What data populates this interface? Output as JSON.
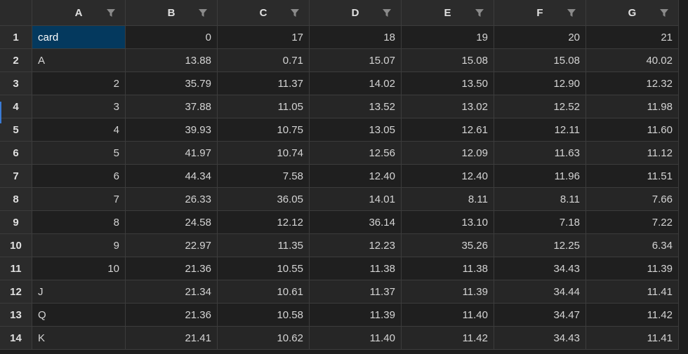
{
  "columns": [
    "A",
    "B",
    "C",
    "D",
    "E",
    "F",
    "G"
  ],
  "filter_icon": "filter-funnel-icon",
  "selected_cell": "A1",
  "colors": {
    "background": "#1e1e1e",
    "header": "#2b2b2b",
    "gridline": "#3c3c3c",
    "selection": "#04395e",
    "row_marker": "#3a7bd5"
  },
  "rows": [
    {
      "n": "1",
      "cells": [
        "card",
        "0",
        "17",
        "18",
        "19",
        "20",
        "21"
      ]
    },
    {
      "n": "2",
      "cells": [
        "A",
        "13.88",
        "0.71",
        "15.07",
        "15.08",
        "15.08",
        "40.02"
      ]
    },
    {
      "n": "3",
      "cells": [
        "2",
        "35.79",
        "11.37",
        "14.02",
        "13.50",
        "12.90",
        "12.32"
      ]
    },
    {
      "n": "4",
      "cells": [
        "3",
        "37.88",
        "11.05",
        "13.52",
        "13.02",
        "12.52",
        "11.98"
      ]
    },
    {
      "n": "5",
      "cells": [
        "4",
        "39.93",
        "10.75",
        "13.05",
        "12.61",
        "12.11",
        "11.60"
      ]
    },
    {
      "n": "6",
      "cells": [
        "5",
        "41.97",
        "10.74",
        "12.56",
        "12.09",
        "11.63",
        "11.12"
      ]
    },
    {
      "n": "7",
      "cells": [
        "6",
        "44.34",
        "7.58",
        "12.40",
        "12.40",
        "11.96",
        "11.51"
      ]
    },
    {
      "n": "8",
      "cells": [
        "7",
        "26.33",
        "36.05",
        "14.01",
        "8.11",
        "8.11",
        "7.66"
      ]
    },
    {
      "n": "9",
      "cells": [
        "8",
        "24.58",
        "12.12",
        "36.14",
        "13.10",
        "7.18",
        "7.22"
      ]
    },
    {
      "n": "10",
      "cells": [
        "9",
        "22.97",
        "11.35",
        "12.23",
        "35.26",
        "12.25",
        "6.34"
      ]
    },
    {
      "n": "11",
      "cells": [
        "10",
        "21.36",
        "10.55",
        "11.38",
        "11.38",
        "34.43",
        "11.39"
      ]
    },
    {
      "n": "12",
      "cells": [
        "J",
        "21.34",
        "10.61",
        "11.37",
        "11.39",
        "34.44",
        "11.41"
      ]
    },
    {
      "n": "13",
      "cells": [
        "Q",
        "21.36",
        "10.58",
        "11.39",
        "11.40",
        "34.47",
        "11.42"
      ]
    },
    {
      "n": "14",
      "cells": [
        "K",
        "21.41",
        "10.62",
        "11.40",
        "11.42",
        "34.43",
        "11.41"
      ]
    }
  ]
}
